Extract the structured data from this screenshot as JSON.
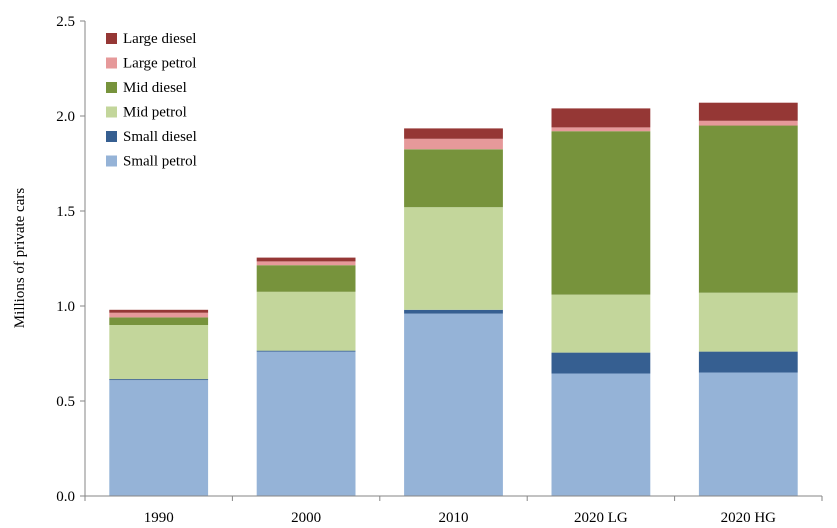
{
  "chart_data": {
    "type": "bar",
    "stacked": true,
    "title": "",
    "xlabel": "",
    "ylabel": "Millions of private cars",
    "ylim": [
      0,
      2.5
    ],
    "yticks": [
      "0.0",
      "0.5",
      "1.0",
      "1.5",
      "2.0",
      "2.5"
    ],
    "grid": false,
    "legend_position": "top-left",
    "categories": [
      "1990",
      "2000",
      "2010",
      "2020 LG",
      "2020 HG"
    ],
    "series": [
      {
        "name": "Small petrol",
        "color": "#95b3d7",
        "values": [
          0.61,
          0.76,
          0.96,
          0.645,
          0.65
        ]
      },
      {
        "name": "Small diesel",
        "color": "#365f91",
        "values": [
          0.005,
          0.005,
          0.02,
          0.11,
          0.11
        ]
      },
      {
        "name": "Mid petrol",
        "color": "#c3d69b",
        "values": [
          0.285,
          0.31,
          0.54,
          0.305,
          0.31
        ]
      },
      {
        "name": "Mid diesel",
        "color": "#77933c",
        "values": [
          0.04,
          0.14,
          0.305,
          0.86,
          0.88
        ]
      },
      {
        "name": "Large petrol",
        "color": "#e6999a",
        "values": [
          0.025,
          0.02,
          0.055,
          0.02,
          0.025
        ]
      },
      {
        "name": "Large diesel",
        "color": "#953735",
        "values": [
          0.015,
          0.02,
          0.055,
          0.1,
          0.095
        ]
      }
    ]
  }
}
